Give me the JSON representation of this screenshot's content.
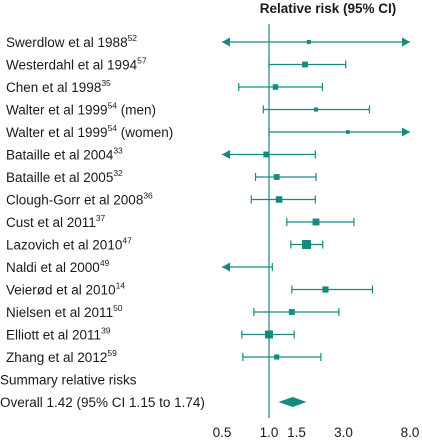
{
  "chart_data": {
    "type": "forest",
    "header": "Relative risk (95% CI)",
    "x_scale": "log",
    "xlim": [
      0.5,
      8.0
    ],
    "x_ticks": [
      {
        "value": 0.5,
        "label": "0.5"
      },
      {
        "value": 1.0,
        "label": "1.0"
      },
      {
        "value": 1.5,
        "label": "1.5"
      },
      {
        "value": 3.0,
        "label": "3.0"
      },
      {
        "value": 8.0,
        "label": "8.0"
      }
    ],
    "reference_line": 1.0,
    "marker_color": "#148a80",
    "studies": [
      {
        "name": "Swerdlow et al 1988",
        "ref": "52",
        "rr": 1.8,
        "lo": 0.5,
        "hi": 8.0,
        "lo_arrow": true,
        "hi_arrow": true,
        "weight": 0.3
      },
      {
        "name": "Westerdahl et al 1994",
        "ref": "57",
        "rr": 1.7,
        "lo": 1.0,
        "hi": 3.1,
        "lo_arrow": false,
        "hi_arrow": false,
        "weight": 0.55
      },
      {
        "name": "Chen et al 1998",
        "ref": "35",
        "rr": 1.1,
        "lo": 0.64,
        "hi": 2.2,
        "lo_arrow": false,
        "hi_arrow": false,
        "weight": 0.5
      },
      {
        "name": "Walter et al 1999",
        "ref": "54",
        "suffix": " (men)",
        "rr": 2.0,
        "lo": 0.92,
        "hi": 4.4,
        "lo_arrow": false,
        "hi_arrow": false,
        "weight": 0.3
      },
      {
        "name": "Walter et al 1999",
        "ref": "54",
        "suffix": " (women)",
        "rr": 3.2,
        "lo": 1.0,
        "hi": 8.0,
        "lo_arrow": false,
        "hi_arrow": true,
        "weight": 0.25
      },
      {
        "name": "Bataille et al 2004",
        "ref": "33",
        "rr": 0.96,
        "lo": 0.5,
        "hi": 1.98,
        "lo_arrow": true,
        "hi_arrow": false,
        "weight": 0.55
      },
      {
        "name": "Bataille et al 2005",
        "ref": "32",
        "rr": 1.12,
        "lo": 0.82,
        "hi": 2.0,
        "lo_arrow": false,
        "hi_arrow": false,
        "weight": 0.55
      },
      {
        "name": "Clough-Gorr et al 2008",
        "ref": "36",
        "rr": 1.16,
        "lo": 0.77,
        "hi": 1.98,
        "lo_arrow": false,
        "hi_arrow": false,
        "weight": 0.65
      },
      {
        "name": "Cust et al 2011",
        "ref": "37",
        "rr": 2.0,
        "lo": 1.3,
        "hi": 3.5,
        "lo_arrow": false,
        "hi_arrow": false,
        "weight": 0.7
      },
      {
        "name": "Lazovich et al 2010",
        "ref": "47",
        "rr": 1.74,
        "lo": 1.38,
        "hi": 2.21,
        "lo_arrow": false,
        "hi_arrow": false,
        "weight": 1.0
      },
      {
        "name": "Naldi et al 2000",
        "ref": "49",
        "rr": 0.5,
        "lo": 0.5,
        "hi": 1.05,
        "lo_arrow": true,
        "hi_arrow": false,
        "weight": 0.0
      },
      {
        "name": "Veierød et al 2010",
        "ref": "14",
        "rr": 2.3,
        "lo": 1.4,
        "hi": 4.6,
        "lo_arrow": false,
        "hi_arrow": false,
        "weight": 0.6
      },
      {
        "name": "Nielsen et al 2011",
        "ref": "50",
        "rr": 1.4,
        "lo": 0.8,
        "hi": 2.8,
        "lo_arrow": false,
        "hi_arrow": false,
        "weight": 0.55
      },
      {
        "name": "Elliott et al 2011",
        "ref": "39",
        "rr": 1.0,
        "lo": 0.67,
        "hi": 1.45,
        "lo_arrow": false,
        "hi_arrow": false,
        "weight": 0.85
      },
      {
        "name": "Zhang et al 2012",
        "ref": "59",
        "rr": 1.12,
        "lo": 0.68,
        "hi": 2.15,
        "lo_arrow": false,
        "hi_arrow": false,
        "weight": 0.45
      }
    ],
    "summary_heading": "Summary relative risks",
    "overall": {
      "label": "Overall 1.42 (95% CI 1.15 to 1.74)",
      "rr": 1.42,
      "lo": 1.15,
      "hi": 1.74
    }
  }
}
